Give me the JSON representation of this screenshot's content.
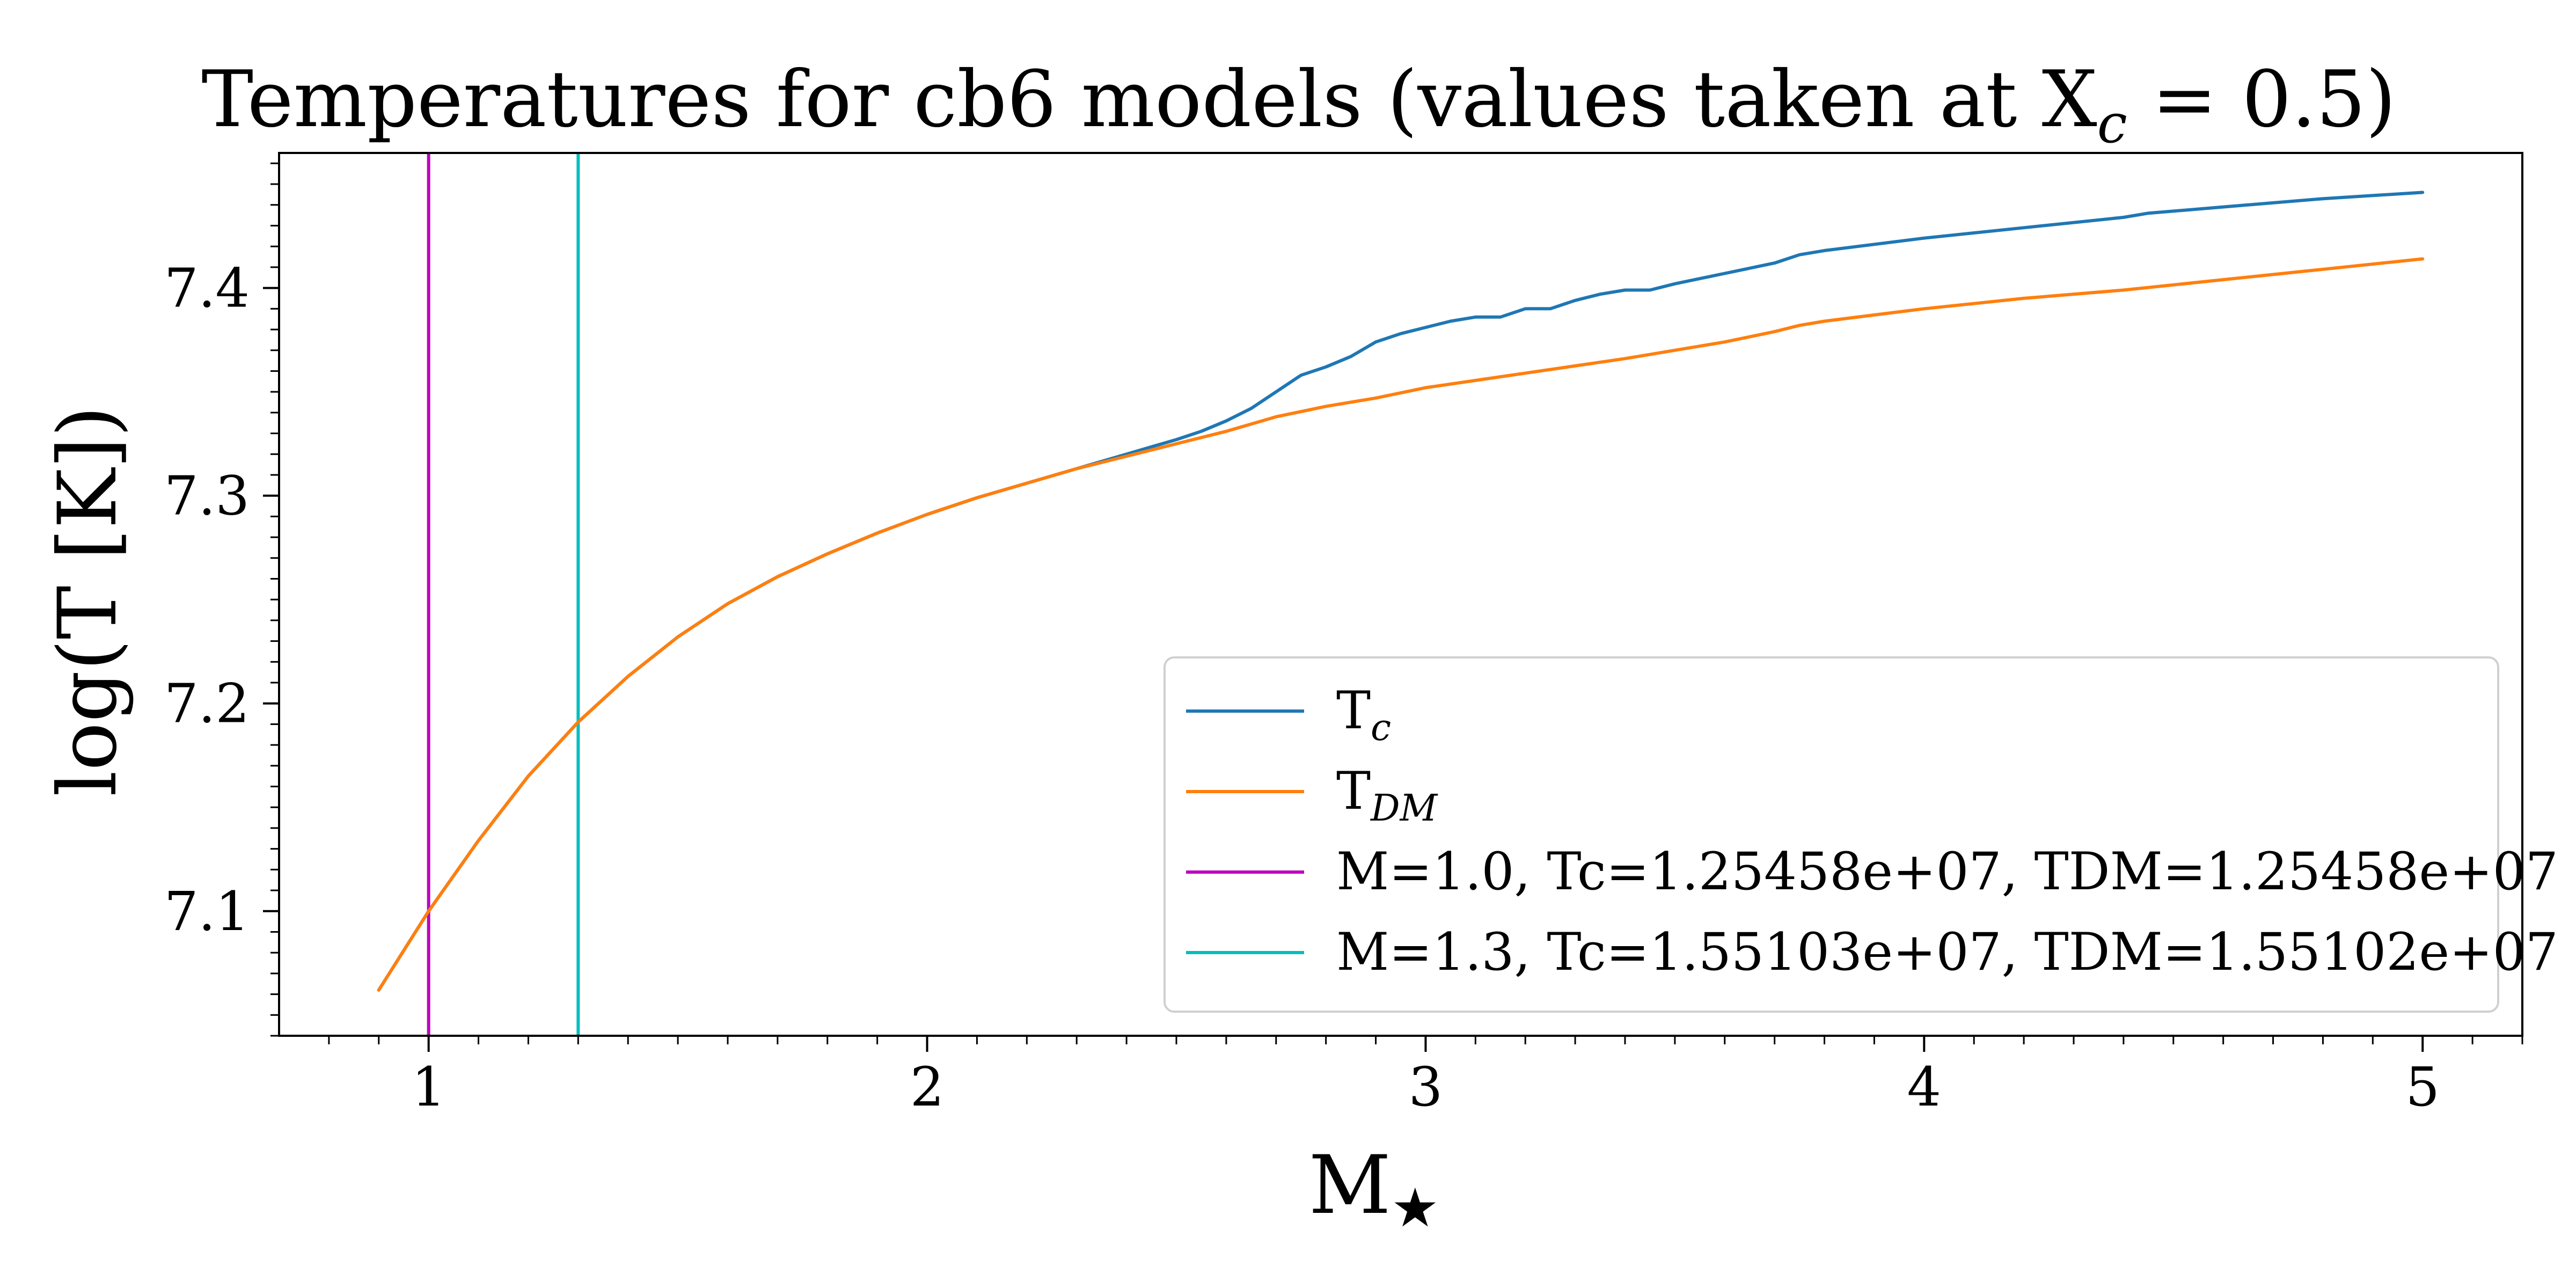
{
  "chart_data": {
    "type": "line",
    "title": "Temperatures for cb6 models (values taken at X",
    "title_sub": "c",
    "title_tail": " = 0.5)",
    "xlabel": "M",
    "xlabel_sub": "★",
    "ylabel": "log(T [K])",
    "xlim": [
      0.7,
      5.2
    ],
    "ylim": [
      7.04,
      7.465
    ],
    "x_ticks": [
      1,
      2,
      3,
      4,
      5
    ],
    "x_tick_labels": [
      "1",
      "2",
      "3",
      "4",
      "5"
    ],
    "y_ticks": [
      7.1,
      7.2,
      7.3,
      7.4
    ],
    "y_tick_labels": [
      "7.1",
      "7.2",
      "7.3",
      "7.4"
    ],
    "grid": false,
    "legend_position": "lower-right",
    "series": [
      {
        "name": "T",
        "name_sub": "c",
        "color": "#1f77b4",
        "x": [
          0.9,
          1.0,
          1.1,
          1.2,
          1.3,
          1.4,
          1.5,
          1.6,
          1.7,
          1.8,
          1.9,
          2.0,
          2.1,
          2.2,
          2.3,
          2.4,
          2.5,
          2.55,
          2.6,
          2.65,
          2.7,
          2.75,
          2.8,
          2.85,
          2.9,
          2.95,
          3.0,
          3.05,
          3.1,
          3.15,
          3.2,
          3.25,
          3.3,
          3.35,
          3.4,
          3.45,
          3.5,
          3.6,
          3.7,
          3.75,
          3.8,
          3.9,
          4.0,
          4.2,
          4.4,
          4.45,
          4.5,
          4.6,
          4.8,
          5.0
        ],
        "y": [
          7.062,
          7.1,
          7.134,
          7.165,
          7.191,
          7.213,
          7.232,
          7.248,
          7.261,
          7.272,
          7.282,
          7.291,
          7.299,
          7.306,
          7.313,
          7.32,
          7.327,
          7.331,
          7.336,
          7.342,
          7.35,
          7.358,
          7.362,
          7.367,
          7.374,
          7.378,
          7.381,
          7.384,
          7.386,
          7.386,
          7.39,
          7.39,
          7.394,
          7.397,
          7.399,
          7.399,
          7.402,
          7.407,
          7.412,
          7.416,
          7.418,
          7.421,
          7.424,
          7.429,
          7.434,
          7.436,
          7.437,
          7.439,
          7.443,
          7.446
        ]
      },
      {
        "name": "T",
        "name_sub": "DM",
        "color": "#ff7f0e",
        "x": [
          0.9,
          1.0,
          1.1,
          1.2,
          1.3,
          1.4,
          1.5,
          1.6,
          1.7,
          1.8,
          1.9,
          2.0,
          2.1,
          2.2,
          2.3,
          2.4,
          2.5,
          2.6,
          2.7,
          2.8,
          2.9,
          3.0,
          3.2,
          3.4,
          3.5,
          3.6,
          3.7,
          3.75,
          3.8,
          3.9,
          4.0,
          4.2,
          4.4,
          4.6,
          4.8,
          5.0
        ],
        "y": [
          7.062,
          7.1,
          7.134,
          7.165,
          7.191,
          7.213,
          7.232,
          7.248,
          7.261,
          7.272,
          7.282,
          7.291,
          7.299,
          7.306,
          7.313,
          7.319,
          7.325,
          7.331,
          7.338,
          7.343,
          7.347,
          7.352,
          7.359,
          7.366,
          7.37,
          7.374,
          7.379,
          7.382,
          7.384,
          7.387,
          7.39,
          7.395,
          7.399,
          7.404,
          7.409,
          7.414
        ]
      }
    ],
    "vlines": [
      {
        "x": 1.0,
        "color": "#bf00bf",
        "label": "M=1.0, Tc=1.25458e+07, TDM=1.25458e+07"
      },
      {
        "x": 1.3,
        "color": "#00bfbf",
        "label": "M=1.3, Tc=1.55103e+07, TDM=1.55102e+07"
      }
    ]
  }
}
